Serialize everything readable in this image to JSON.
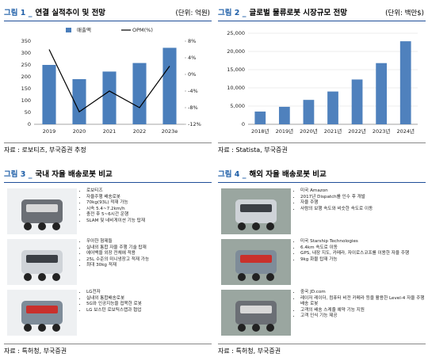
{
  "figures": [
    {
      "label": "그림 1 _",
      "title": "연결 실적추이 및 전망",
      "unit": "(단위: 억원)",
      "source": "자료 : 로보티즈, 부국증권 추정"
    },
    {
      "label": "그림 2 _",
      "title": "글로벌 물류로봇 시장규모 전망",
      "unit": "(단위: 백만$)",
      "source": "자료 : Statista, 부국증권"
    },
    {
      "label": "그림 3 _",
      "title": "국내 자율 배송로봇 비교",
      "source": "자료 : 특허청, 부국증권"
    },
    {
      "label": "그림 4 _",
      "title": "해외 자율 배송로봇 비교",
      "source": "자료 : 특허청, 부국증권"
    }
  ],
  "chart_data": [
    {
      "type": "bar_line",
      "categories": [
        "2019",
        "2020",
        "2021",
        "2022",
        "2023e"
      ],
      "series": [
        {
          "name": "매출액",
          "color": "#4a7ebb",
          "values": [
            250,
            190,
            222,
            258,
            322
          ]
        },
        {
          "name": "OPM(%)",
          "color": "#000000",
          "axis": "y2",
          "values": [
            6,
            -9,
            -4,
            -8,
            2
          ]
        }
      ],
      "ylim": [
        0,
        350
      ],
      "yticks": [
        0,
        50,
        100,
        150,
        200,
        250,
        300,
        350
      ],
      "y2lim": [
        -12,
        8
      ],
      "y2ticks": [
        {
          "value": -12,
          "label": "-12%"
        },
        {
          "value": -8,
          "label": "-8%"
        },
        {
          "value": -4,
          "label": "-4%"
        },
        {
          "value": 0,
          "label": "0%"
        },
        {
          "value": 4,
          "label": "4%"
        },
        {
          "value": 8,
          "label": "8%"
        }
      ],
      "grid": false
    },
    {
      "type": "bar",
      "categories": [
        "2018년",
        "2019년",
        "2020년",
        "2021년",
        "2022년",
        "2023년",
        "2024년"
      ],
      "values": [
        3500,
        4800,
        6700,
        9000,
        12300,
        16800,
        22800
      ],
      "color": "#4f81bd",
      "ylim": [
        0,
        25000
      ],
      "yticks": [
        0,
        {
          "value": 5000,
          "label": "5,000"
        },
        {
          "value": 10000,
          "label": "10,000"
        },
        {
          "value": 15000,
          "label": "15,000"
        },
        {
          "value": 20000,
          "label": "20,000"
        },
        {
          "value": 25000,
          "label": "25,000"
        }
      ],
      "grid": true
    }
  ],
  "robots_domestic": [
    [
      "로보티즈",
      "자율주행 배송로봇",
      "70kg(93L) 적재 가능",
      "시속 5.4~7.2km/h",
      "충전 후 5~6시간 운행",
      "SLAM 및 네비게이션 기능 탑재"
    ],
    [
      "우아한 형제들",
      "실내외 통합 자율 주행 기술 탑재",
      "에어백을 외장 전체에 적용",
      "25L 수준의 미니냉장고 적재 가능",
      "최대 30kg 적재"
    ],
    [
      "LG전자",
      "실내외 통합배송로봇",
      "5G와 인공지능을 접목한 로봇",
      "LG 보스턴 로보틱스랩과 협업"
    ]
  ],
  "robots_foreign": [
    [
      "미국 Amazon",
      "2017년 Dispatch를 인수 후 개발",
      "자율 주행",
      "사람의 보행 속도와 비슷한 속도로 이동"
    ],
    [
      "미국 Starship Technologies",
      "6.4km 속도로 이동",
      "GPS, 내장 지도, 카메라, 자이로스코프를 이용한 자율 주행",
      "9kg 화물 탑재 가능"
    ],
    [
      "중국 JD.com",
      "레이저 레이더, 컴퓨터 비전 카메라 등을 활용한 Level-4 자율 주행 배송 로봇",
      "고객의 배송 스케쥴 예약 기능 지원",
      "고객 인식 기능 제공"
    ]
  ]
}
